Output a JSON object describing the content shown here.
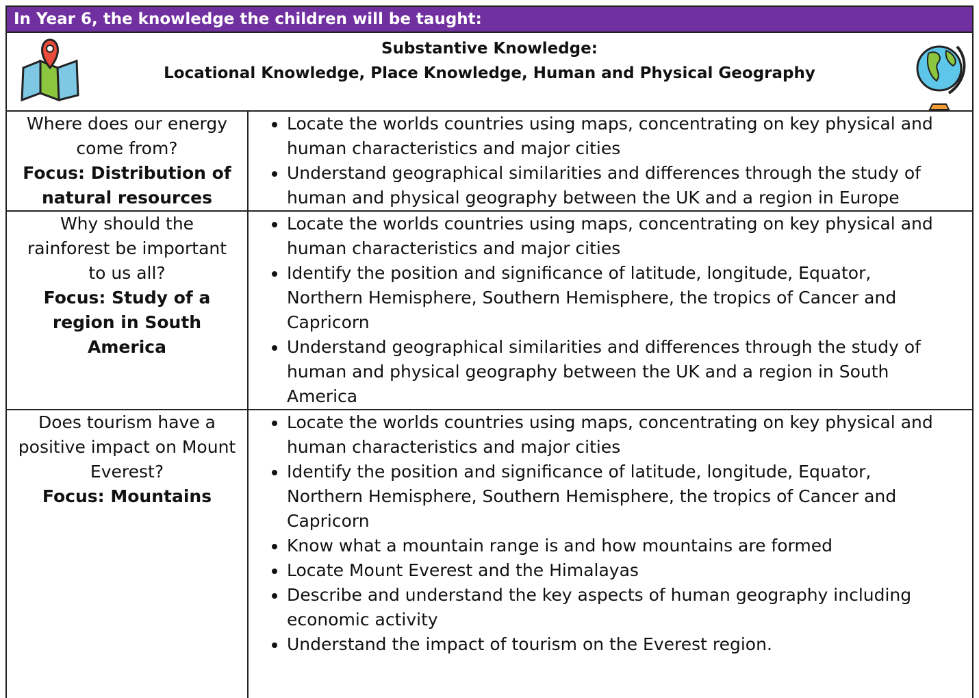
{
  "header": {
    "title": "In Year 6, the knowledge the children will be taught:"
  },
  "subheader": {
    "line1": "Substantive Knowledge:",
    "line2": "Locational Knowledge, Place Knowledge, Human and Physical Geography"
  },
  "table": {
    "rows": [
      {
        "question": "Where does our energy come from?",
        "focus": "Focus: Distribution of natural resources",
        "points": [
          "Locate the worlds countries using maps, concentrating on key physical and human characteristics and major cities",
          "Understand geographical similarities and differences through the study of human and physical geography between the UK and a region in Europe"
        ]
      },
      {
        "question": "Why should the rainforest be important to us all?",
        "focus": "Focus: Study of a region in South America",
        "points": [
          "Locate the worlds countries using maps, concentrating on key physical and human characteristics and major cities",
          "Identify the position and significance of latitude, longitude, Equator, Northern Hemisphere, Southern Hemisphere, the tropics of Cancer and Capricorn",
          "Understand geographical similarities and differences through the study of human and physical geography between the UK and a region in South America"
        ]
      },
      {
        "question": "Does tourism have a positive impact on Mount Everest?",
        "focus": "Focus: Mountains",
        "points": [
          "Locate the worlds countries using maps, concentrating on key physical and human characteristics and major cities",
          "Identify the position and significance of latitude, longitude, Equator, Northern Hemisphere, Southern Hemisphere, the tropics of Cancer and Capricorn",
          "Know what a mountain range is and how mountains are formed",
          "Locate Mount Everest and the Himalayas",
          "Describe and understand the key aspects of human geography including economic activity",
          "Understand the impact of tourism on the Everest region."
        ]
      }
    ]
  }
}
